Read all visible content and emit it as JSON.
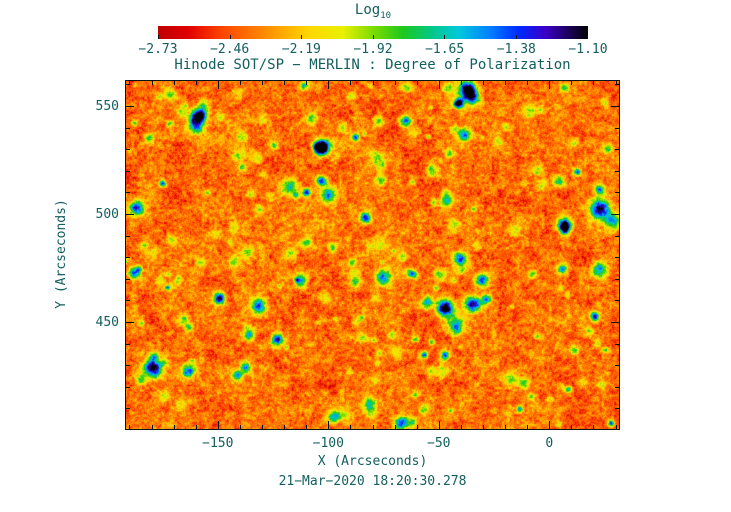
{
  "figure": {
    "bg_color": "#ffffff",
    "text_color": "#135e5e",
    "axis_color": "#031515"
  },
  "colorbar": {
    "label": "Log",
    "label_sub": "10",
    "tick_labels": [
      "−2.73",
      "−2.46",
      "−2.19",
      "−1.92",
      "−1.65",
      "−1.38",
      "−1.10"
    ]
  },
  "chart_data": {
    "type": "heatmap",
    "title": "Hinode SOT/SP − MERLIN : Degree of Polarization",
    "xlabel": "X (Arcseconds)",
    "ylabel": "Y (Arcseconds)",
    "timestamp": "21−Mar−2020 18:20:30.278",
    "x_range": [
      -192,
      32
    ],
    "y_range": [
      400,
      562
    ],
    "x_tick_values": [
      -150,
      -100,
      -50,
      0
    ],
    "x_tick_labels": [
      "−150",
      "−100",
      "−50",
      "0"
    ],
    "y_tick_values": [
      450,
      500,
      550
    ],
    "y_tick_labels": [
      "450",
      "500",
      "550"
    ],
    "x_minor_step": 10,
    "y_minor_step": 10,
    "colorbar_range": [
      -2.73,
      -1.1
    ],
    "colorbar_scale": "log10 of degree of polarization",
    "colormap_stops": [
      [
        0.0,
        "#be0000"
      ],
      [
        0.07,
        "#e00000"
      ],
      [
        0.15,
        "#ff4500"
      ],
      [
        0.25,
        "#ff8c00"
      ],
      [
        0.35,
        "#ffd700"
      ],
      [
        0.43,
        "#e8f000"
      ],
      [
        0.5,
        "#7ddc00"
      ],
      [
        0.57,
        "#1ec81e"
      ],
      [
        0.64,
        "#00c88c"
      ],
      [
        0.7,
        "#00c8dc"
      ],
      [
        0.77,
        "#0082ff"
      ],
      [
        0.84,
        "#0028ff"
      ],
      [
        0.9,
        "#3c00c8"
      ],
      [
        0.95,
        "#1e0064"
      ],
      [
        1.0,
        "#000000"
      ]
    ],
    "texture": {
      "description": "quiet-Sun field: dominant low polarization (red/orange, ~ -2.5) with granular yellow-green speckle and compact high-polarization magnetic features (cyan/blue/black, up to -1.1)",
      "seed": 20200321,
      "small_feature_count": 160,
      "medium_feature_count": 45,
      "strong_feature_count": 9
    }
  }
}
